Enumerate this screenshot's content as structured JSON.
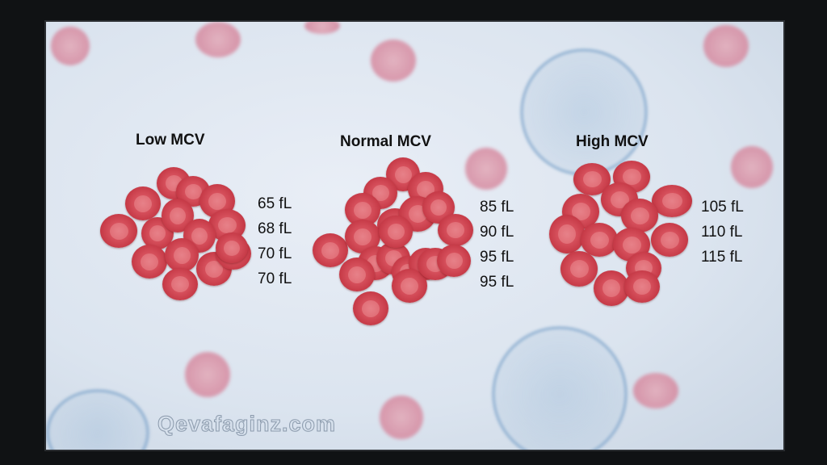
{
  "groups": [
    {
      "title": "Low MCV",
      "values": [
        "65 fL",
        "68 fL",
        "70 fL",
        "70 fL"
      ]
    },
    {
      "title": "Normal MCV",
      "values": [
        "85 fL",
        "90 fL",
        "95 fL",
        "95 fL"
      ]
    },
    {
      "title": "High MCV",
      "values": [
        "105 fL",
        "110 fL",
        "115 fL"
      ]
    }
  ],
  "watermark": "Qevafaginz.com",
  "colors": {
    "rbc": "#c63a47",
    "background": "#dbe4ef",
    "bezel": "#101214"
  }
}
